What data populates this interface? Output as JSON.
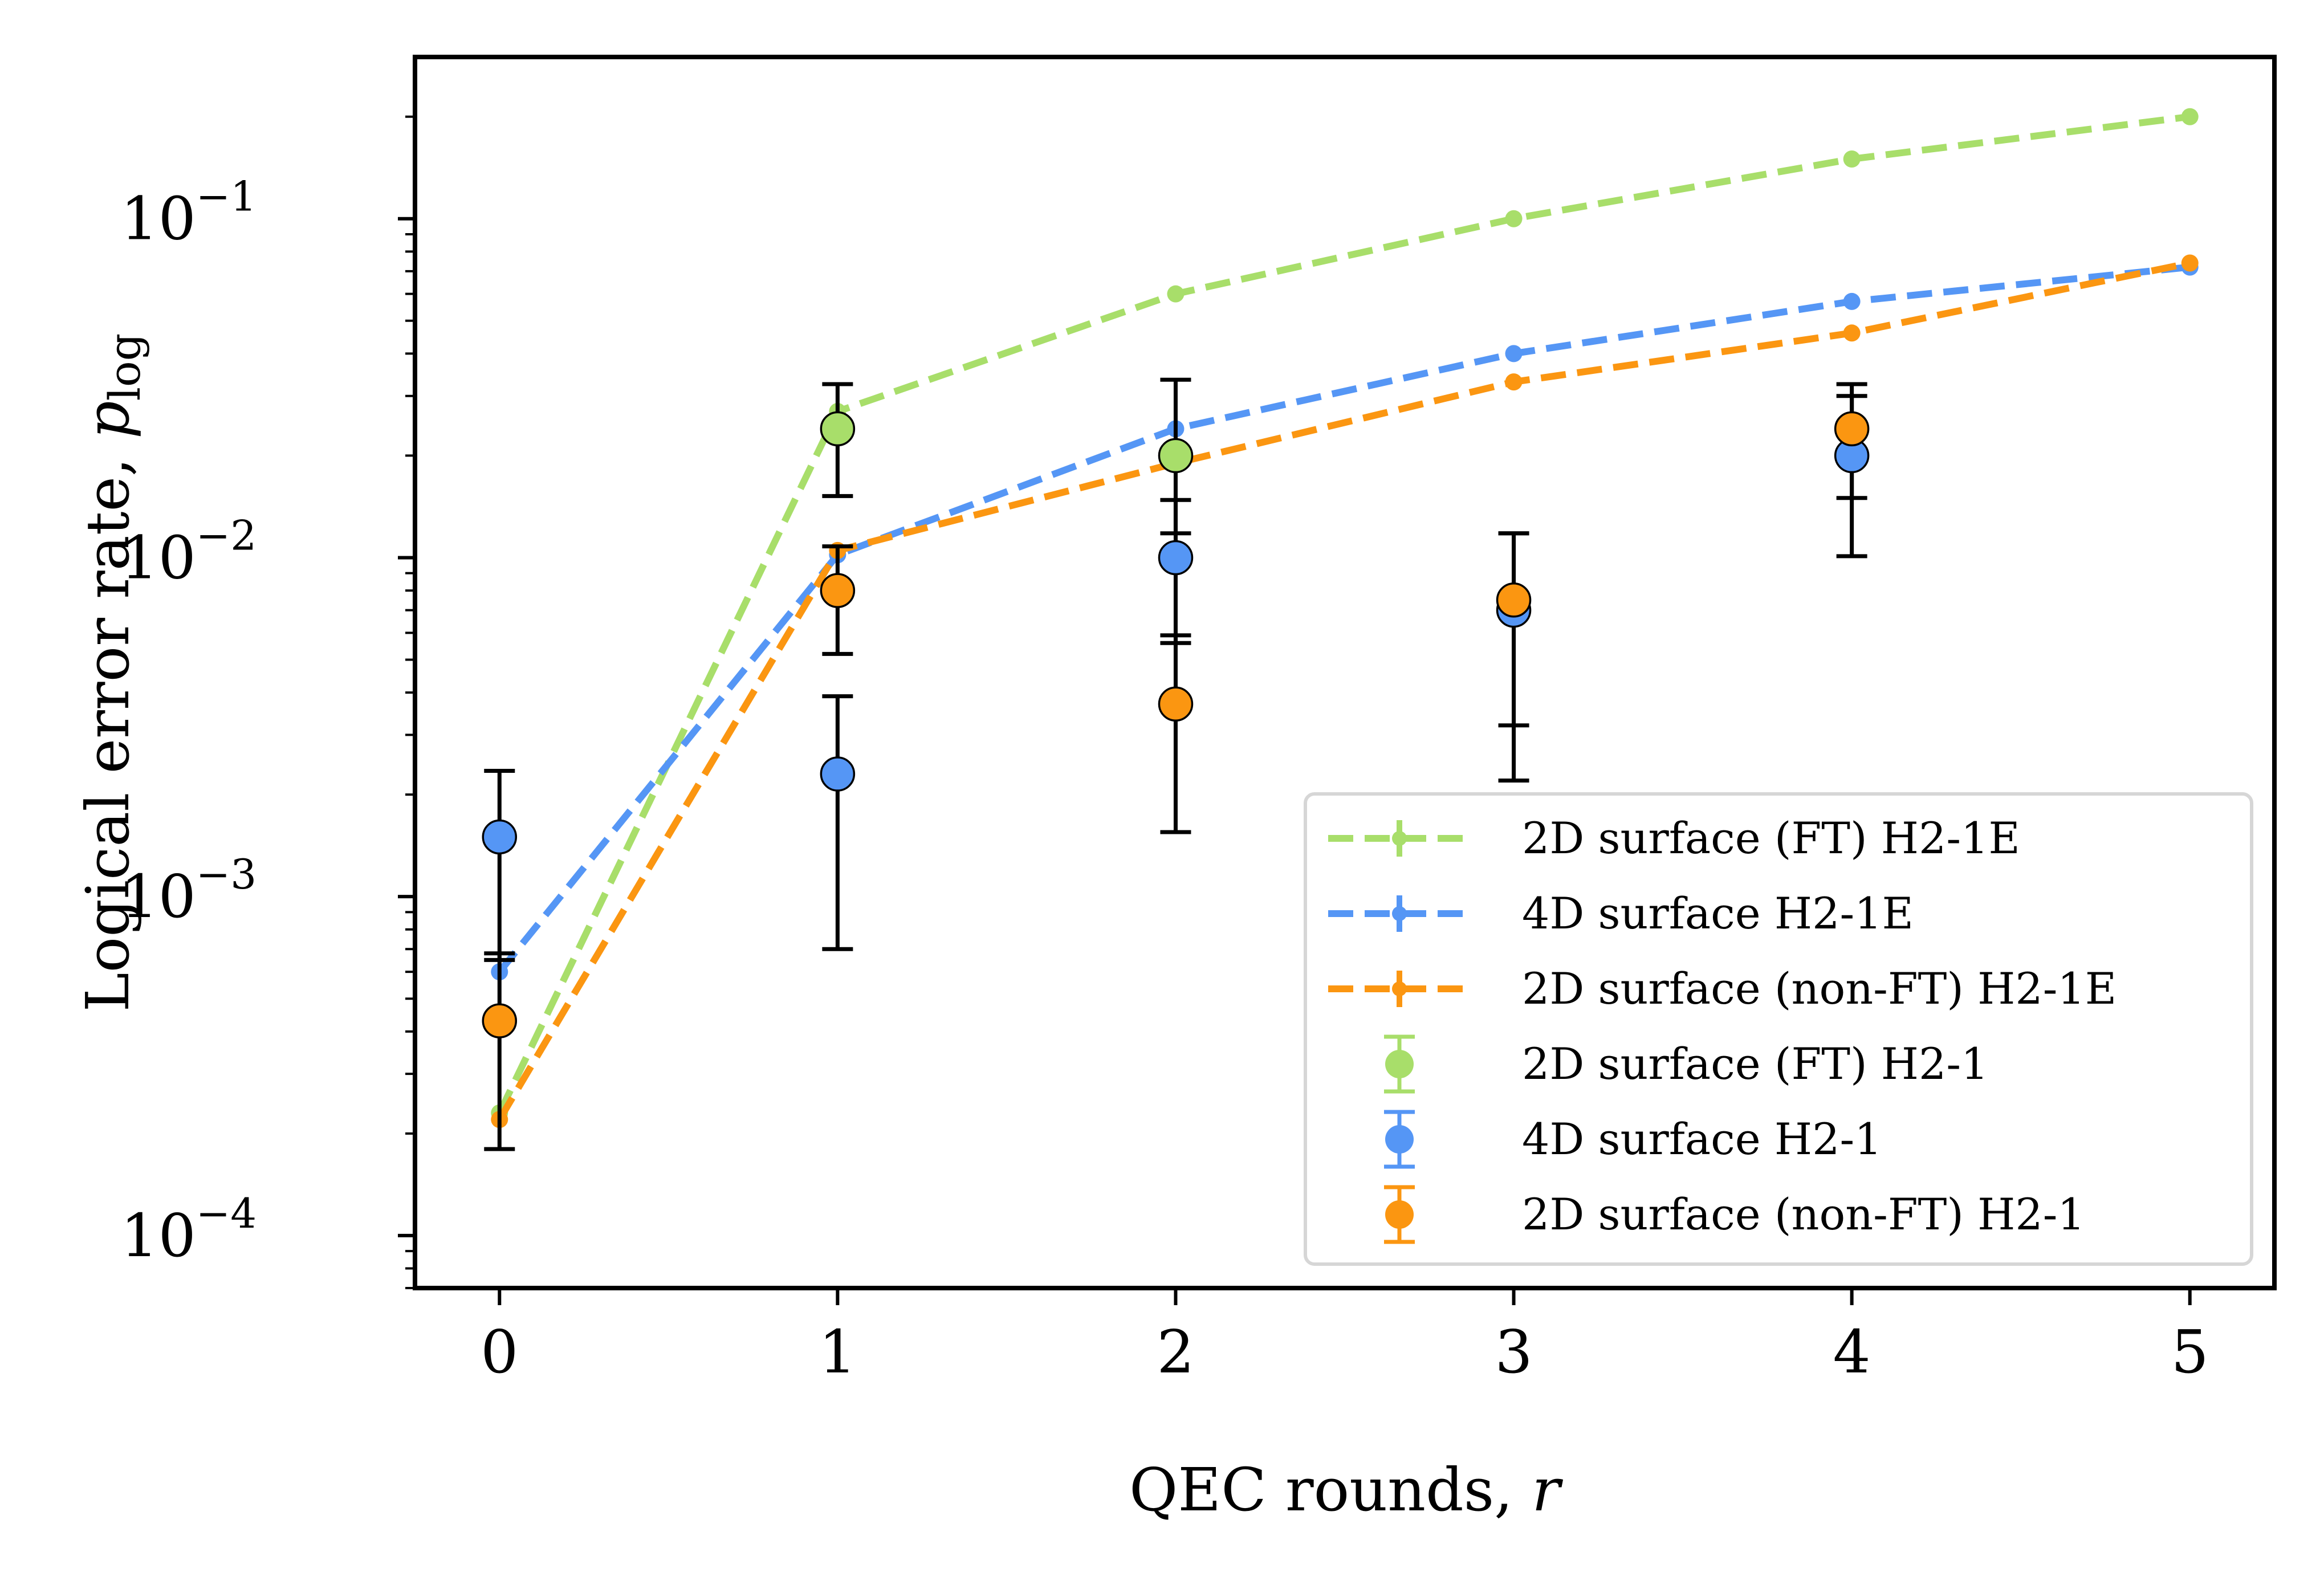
{
  "chart_data": {
    "type": "line",
    "xlabel": "QEC rounds, ",
    "xlabel_var": "r",
    "ylabel": "Logical error rate, ",
    "ylabel_var": "p",
    "ylabel_sub": "log",
    "y_scale": "log",
    "xlim": [
      -0.25,
      5.25
    ],
    "ylim": [
      7e-05,
      0.3
    ],
    "x_ticks": [
      0,
      1,
      2,
      3,
      4,
      5
    ],
    "x_tick_labels": [
      "0",
      "1",
      "2",
      "3",
      "4",
      "5"
    ],
    "y_ticks": [
      0.0001,
      0.001,
      0.01,
      0.1
    ],
    "y_tick_base": "10",
    "y_tick_exponents": [
      "−4",
      "−3",
      "−2",
      "−1"
    ],
    "legend_position": "lower right",
    "grid": false,
    "series": [
      {
        "name": "2D surface (FT) H2-1E",
        "kind": "simulation",
        "color": "#a8de6a",
        "x": [
          0,
          1,
          2,
          3,
          4,
          5
        ],
        "y": [
          0.00023,
          0.027,
          0.06,
          0.1,
          0.15,
          0.2
        ]
      },
      {
        "name": "4D surface H2-1E",
        "kind": "simulation",
        "color": "#5596f5",
        "x": [
          0,
          1,
          2,
          3,
          4,
          5
        ],
        "y": [
          0.0006,
          0.0102,
          0.024,
          0.04,
          0.057,
          0.072
        ]
      },
      {
        "name": "2D surface (non-FT) H2-1E",
        "kind": "simulation",
        "color": "#fb9611",
        "x": [
          0,
          1,
          2,
          3,
          4,
          5
        ],
        "y": [
          0.00022,
          0.0105,
          0.019,
          0.033,
          0.046,
          0.074
        ]
      },
      {
        "name": "2D surface (FT) H2-1",
        "kind": "experiment",
        "color": "#a8de6a",
        "points": [
          {
            "x": 1,
            "y": 0.024,
            "lo": 0.0152,
            "hi": 0.0325
          },
          {
            "x": 2,
            "y": 0.02,
            "lo": 0.0118,
            "hi": 0.0335
          }
        ]
      },
      {
        "name": "4D surface H2-1",
        "kind": "experiment",
        "color": "#5596f5",
        "points": [
          {
            "x": 0,
            "y": 0.0015,
            "lo": 0.00065,
            "hi": 0.00235
          },
          {
            "x": 1,
            "y": 0.0023,
            "lo": 0.0007,
            "hi": 0.0039
          },
          {
            "x": 2,
            "y": 0.01,
            "lo": 0.0056,
            "hi": 0.0148
          },
          {
            "x": 3,
            "y": 0.007,
            "lo": 0.0022,
            "hi": 0.0118
          },
          {
            "x": 4,
            "y": 0.02,
            "lo": 0.0101,
            "hi": 0.03
          }
        ]
      },
      {
        "name": "2D surface (non-FT) H2-1",
        "kind": "experiment",
        "color": "#fb9611",
        "points": [
          {
            "x": 0,
            "y": 0.00043,
            "lo": 0.00018,
            "hi": 0.00068
          },
          {
            "x": 1,
            "y": 0.008,
            "lo": 0.0052,
            "hi": 0.0108
          },
          {
            "x": 2,
            "y": 0.0037,
            "lo": 0.00155,
            "hi": 0.0059
          },
          {
            "x": 3,
            "y": 0.0075,
            "lo": 0.0032,
            "hi": 0.0118
          },
          {
            "x": 4,
            "y": 0.024,
            "lo": 0.015,
            "hi": 0.0325
          }
        ]
      }
    ]
  }
}
